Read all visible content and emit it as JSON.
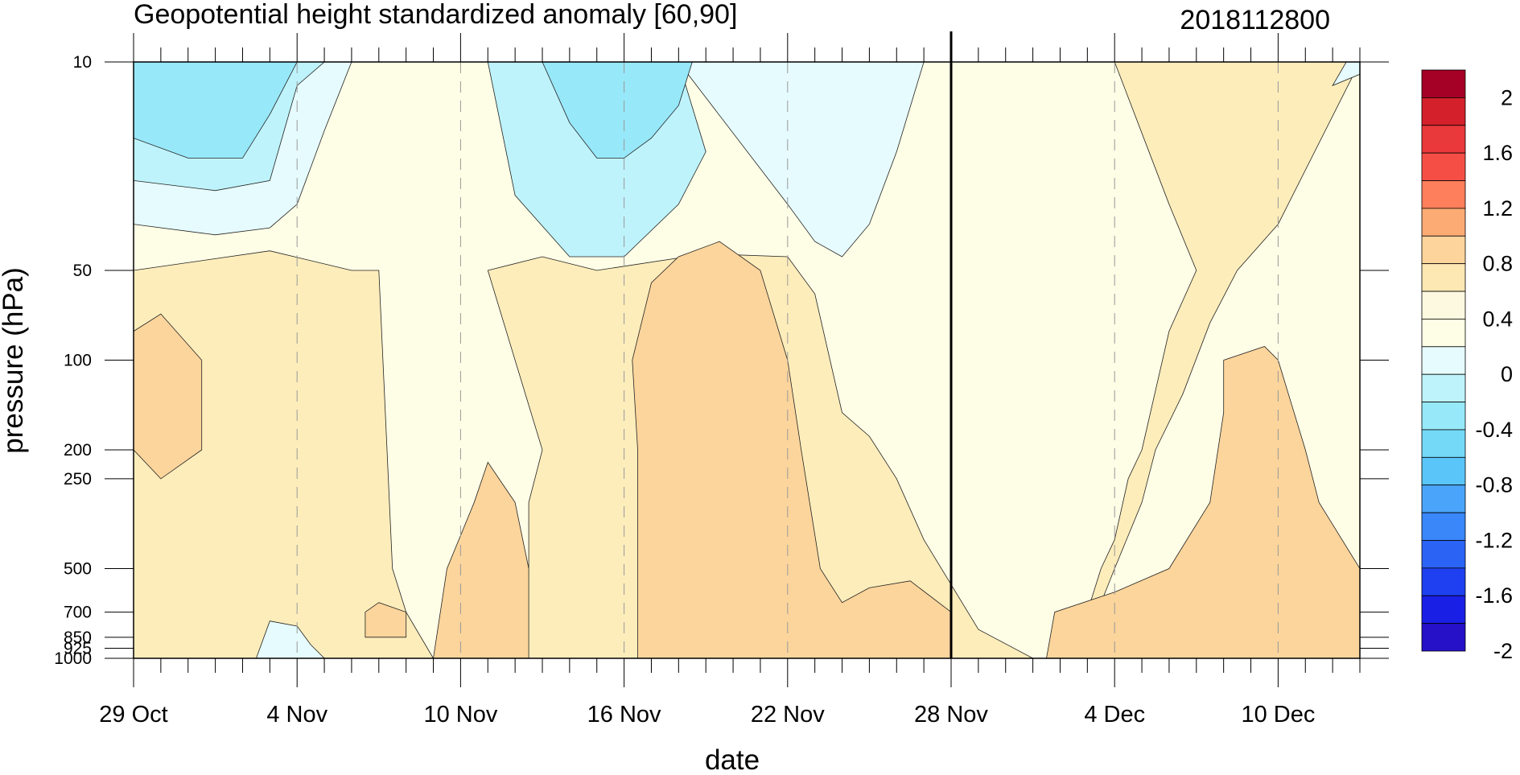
{
  "chart_data": {
    "type": "heatmap",
    "subtype": "filled-contour",
    "title": "Geopotential height standardized anomaly [60,90]",
    "date_label": "2018112800",
    "xlabel": "date",
    "ylabel": "pressure (hPa)",
    "x_start": "29 Oct",
    "x_end": "13 Dec",
    "x_ticks": [
      {
        "label": "29 Oct",
        "day": 0
      },
      {
        "label": "4 Nov",
        "day": 6
      },
      {
        "label": "10 Nov",
        "day": 12
      },
      {
        "label": "16 Nov",
        "day": 18
      },
      {
        "label": "22 Nov",
        "day": 24
      },
      {
        "label": "28 Nov",
        "day": 30
      },
      {
        "label": "4 Dec",
        "day": 36
      },
      {
        "label": "10 Dec",
        "day": 42
      }
    ],
    "y_scale": "log",
    "y_reversed": true,
    "ylim": [
      1000,
      10
    ],
    "y_ticks": [
      "10",
      "50",
      "100",
      "200",
      "250",
      "500",
      "700",
      "850",
      "925",
      "1000"
    ],
    "y_tick_values": [
      10,
      50,
      100,
      200,
      250,
      500,
      700,
      850,
      925,
      1000
    ],
    "current_date_marker": "28 Nov",
    "current_date_day": 30,
    "colorbar": {
      "labels": [
        "2",
        "1.6",
        "1.2",
        "0.8",
        "0.4",
        "0",
        "-0.4",
        "-0.8",
        "-1.2",
        "-1.6",
        "-2"
      ],
      "colors": [
        "#a50026",
        "#d3202a",
        "#e9393a",
        "#f54f45",
        "#fd7f5c",
        "#fdab74",
        "#fdd49c",
        "#fde7b3",
        "#fdf8e0",
        "#fefde6",
        "#e6fbfd",
        "#bef3fb",
        "#97e8f9",
        "#74d9f7",
        "#59c5f8",
        "#4aa5fa",
        "#3987f9",
        "#2b63f5",
        "#1e40f0",
        "#1a1fe6",
        "#2610c8"
      ]
    },
    "level_colors": {
      "-0.8": "#97e8f9",
      "-0.6": "#bef3fb",
      "-0.4": "#e6fbfd",
      "0": "#fefde6",
      "0.2": "#fdf3c8",
      "0.4": "#fdedbb",
      "0.6": "#fcd59c"
    },
    "regions": [
      {
        "level": 0,
        "points": [
          [
            0,
            10
          ],
          [
            45,
            10
          ],
          [
            45,
            1000
          ],
          [
            0,
            1000
          ]
        ]
      },
      {
        "level": 0.4,
        "points": [
          [
            0,
            50
          ],
          [
            5,
            43
          ],
          [
            8,
            50
          ],
          [
            9,
            50
          ],
          [
            9.5,
            500
          ],
          [
            10,
            700
          ],
          [
            11,
            1000
          ],
          [
            14.5,
            1000
          ],
          [
            14.5,
            300
          ],
          [
            15,
            200
          ],
          [
            14,
            100
          ],
          [
            13,
            50
          ],
          [
            15,
            45
          ],
          [
            17,
            50
          ],
          [
            21,
            44
          ],
          [
            24,
            45
          ],
          [
            25,
            60
          ],
          [
            26,
            150
          ],
          [
            27,
            180
          ],
          [
            28,
            250
          ],
          [
            29,
            400
          ],
          [
            31,
            800
          ],
          [
            33,
            1000
          ],
          [
            0,
            1000
          ]
        ]
      },
      {
        "level": 0.4,
        "points": [
          [
            34.5,
            1000
          ],
          [
            35,
            850
          ],
          [
            36,
            500
          ],
          [
            37,
            300
          ],
          [
            37.5,
            200
          ],
          [
            38.5,
            130
          ],
          [
            39.5,
            75
          ],
          [
            40.5,
            50
          ],
          [
            42,
            35
          ],
          [
            45,
            10
          ],
          [
            38,
            10
          ],
          [
            36,
            10
          ],
          [
            38,
            30
          ],
          [
            39,
            50
          ],
          [
            38,
            80
          ],
          [
            37,
            200
          ],
          [
            36.5,
            250
          ],
          [
            36,
            400
          ],
          [
            35.5,
            500
          ],
          [
            35,
            700
          ],
          [
            34.5,
            1000
          ]
        ]
      },
      {
        "level": 0.6,
        "points": [
          [
            0,
            80
          ],
          [
            1,
            70
          ],
          [
            2.5,
            100
          ],
          [
            2.5,
            200
          ],
          [
            1,
            250
          ],
          [
            0,
            200
          ]
        ]
      },
      {
        "level": 0.6,
        "points": [
          [
            18.5,
            200
          ],
          [
            18.3,
            100
          ],
          [
            19,
            55
          ],
          [
            20,
            45
          ],
          [
            21.5,
            40
          ],
          [
            23,
            50
          ],
          [
            24,
            100
          ],
          [
            24.5,
            200
          ],
          [
            25.2,
            500
          ],
          [
            26,
            650
          ],
          [
            27,
            580
          ],
          [
            28.5,
            550
          ],
          [
            30,
            700
          ],
          [
            30,
            1000
          ],
          [
            18.5,
            1000
          ]
        ]
      },
      {
        "level": 0.6,
        "points": [
          [
            11,
            1000
          ],
          [
            11.5,
            500
          ],
          [
            12.5,
            300
          ],
          [
            13,
            220
          ],
          [
            14,
            300
          ],
          [
            14.5,
            500
          ],
          [
            14.5,
            1000
          ]
        ]
      },
      {
        "level": 0.6,
        "points": [
          [
            8.5,
            700
          ],
          [
            9,
            650
          ],
          [
            10,
            700
          ],
          [
            10,
            850
          ],
          [
            8.5,
            850
          ]
        ]
      },
      {
        "level": 0.6,
        "points": [
          [
            33.5,
            1000
          ],
          [
            33.8,
            700
          ],
          [
            36,
            600
          ],
          [
            38,
            500
          ],
          [
            39.5,
            300
          ],
          [
            40,
            150
          ],
          [
            40,
            100
          ],
          [
            41.5,
            90
          ],
          [
            42,
            100
          ],
          [
            43,
            200
          ],
          [
            43.5,
            300
          ],
          [
            45,
            500
          ],
          [
            45,
            1000
          ]
        ]
      },
      {
        "level": -0.4,
        "points": [
          [
            11,
            10
          ],
          [
            15,
            10
          ],
          [
            20,
            10
          ],
          [
            24,
            30
          ],
          [
            25,
            40
          ],
          [
            26,
            45
          ],
          [
            27,
            35
          ],
          [
            28,
            20
          ],
          [
            29,
            10
          ],
          [
            11,
            10
          ]
        ]
      },
      {
        "level": -0.4,
        "points": [
          [
            0,
            35
          ],
          [
            3,
            38
          ],
          [
            5,
            36
          ],
          [
            6,
            30
          ],
          [
            7,
            17
          ],
          [
            8,
            10
          ],
          [
            0,
            10
          ]
        ]
      },
      {
        "level": -0.6,
        "points": [
          [
            13,
            10
          ],
          [
            14,
            28
          ],
          [
            16,
            45
          ],
          [
            18,
            45
          ],
          [
            20,
            30
          ],
          [
            21,
            20
          ],
          [
            20,
            10
          ]
        ]
      },
      {
        "level": -0.6,
        "points": [
          [
            0,
            25
          ],
          [
            3,
            27
          ],
          [
            5,
            25
          ],
          [
            6,
            12
          ],
          [
            7,
            10
          ],
          [
            0,
            10
          ]
        ]
      },
      {
        "level": -0.8,
        "points": [
          [
            0,
            18
          ],
          [
            2,
            21
          ],
          [
            4,
            21
          ],
          [
            5,
            15
          ],
          [
            6,
            10
          ],
          [
            0,
            10
          ]
        ]
      },
      {
        "level": -0.8,
        "points": [
          [
            15,
            10
          ],
          [
            16,
            16
          ],
          [
            17,
            21
          ],
          [
            18,
            21
          ],
          [
            19,
            18
          ],
          [
            20,
            14
          ],
          [
            20.5,
            10
          ]
        ]
      },
      {
        "level": -0.4,
        "points": [
          [
            44.5,
            10
          ],
          [
            45,
            10
          ],
          [
            45,
            11
          ],
          [
            44,
            12
          ]
        ]
      },
      {
        "level": -0.4,
        "points": [
          [
            5,
            750
          ],
          [
            6,
            780
          ],
          [
            6.5,
            900
          ],
          [
            7,
            1000
          ],
          [
            4.5,
            1000
          ]
        ]
      }
    ]
  }
}
